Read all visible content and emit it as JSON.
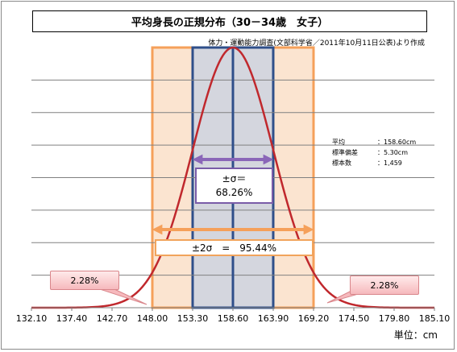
{
  "chart_data": {
    "type": "line",
    "title": "平均身長の正規分布（30－34歳　女子）",
    "source": "体力・運動能力調査(文部科学省／2011年10月11日公表)より作成",
    "stats": [
      {
        "label": "平均",
        "value": "：158.60cm"
      },
      {
        "label": "標準偏差",
        "value": "：5.30cm"
      },
      {
        "label": "標本数",
        "value": "：1,459"
      }
    ],
    "mean": 158.6,
    "sd": 5.3,
    "xlim": [
      132.1,
      185.1
    ],
    "x_ticks": [
      "132.10",
      "137.40",
      "142.70",
      "148.00",
      "153.30",
      "158.60",
      "163.90",
      "169.20",
      "174.50",
      "179.80",
      "185.10"
    ],
    "grid": true,
    "bands": [
      {
        "from": 148.0,
        "to": 169.2,
        "label": "±2σ　=　95.44%",
        "color": "#fbe4d0"
      },
      {
        "from": 153.3,
        "to": 163.9,
        "label_line1": "±σ＝",
        "label_line2": "68.26%",
        "color": "#d4d6de"
      }
    ],
    "tail_labels": [
      "2.28%",
      "2.28%"
    ],
    "unit": "単位：cm",
    "colors": {
      "curve": "#c0282d",
      "sigma_band_border": "#2f4f8a",
      "two_sigma_border": "#f5a05a",
      "sigma_arrow": "#8a66b8",
      "two_sigma_arrow": "#f5a05a"
    }
  }
}
